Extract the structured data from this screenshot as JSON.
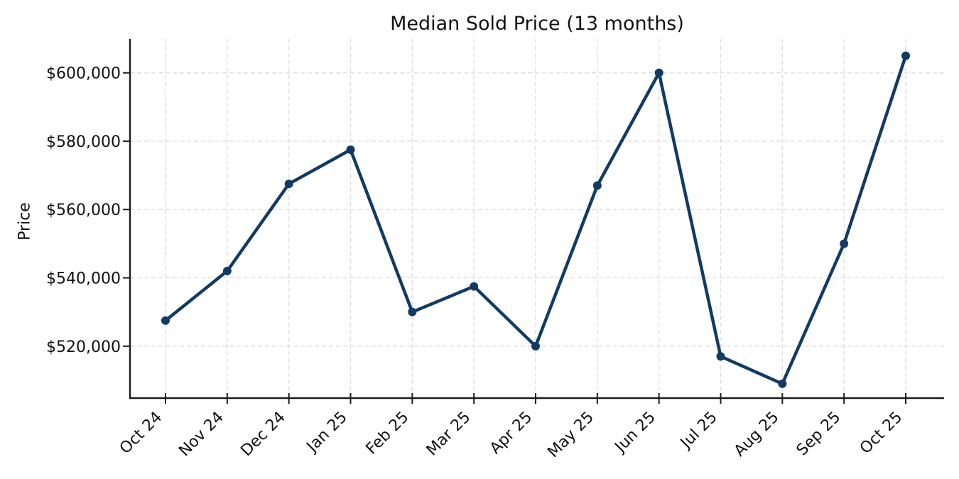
{
  "chart_data": {
    "type": "line",
    "title": "Median Sold Price (13 months)",
    "xlabel": "",
    "ylabel": "Price",
    "categories": [
      "Oct 24",
      "Nov 24",
      "Dec 24",
      "Jan 25",
      "Feb 25",
      "Mar 25",
      "Apr 25",
      "May 25",
      "Jun 25",
      "Jul 25",
      "Aug 25",
      "Sep 25",
      "Oct 25"
    ],
    "series": [
      {
        "name": "Median Sold Price",
        "values": [
          527500,
          542000,
          567500,
          577500,
          530000,
          537500,
          520000,
          567000,
          600000,
          517000,
          509000,
          550000,
          605000
        ]
      }
    ],
    "ylim": [
      504800,
      609900
    ],
    "yticks": {
      "values": [
        520000,
        540000,
        560000,
        580000,
        600000
      ],
      "labels": [
        "$520,000",
        "$540,000",
        "$560,000",
        "$580,000",
        "$600,000"
      ]
    },
    "grid": true,
    "grid_style": "dashed",
    "legend": "none",
    "x_tick_rotation_deg": 45,
    "marker": "circle",
    "colors": {
      "line": "#123b63",
      "marker": "#123b63",
      "grid": "#dcdcdc",
      "axis": "#1c1c1c",
      "text": "#111111",
      "background": "#ffffff"
    }
  }
}
